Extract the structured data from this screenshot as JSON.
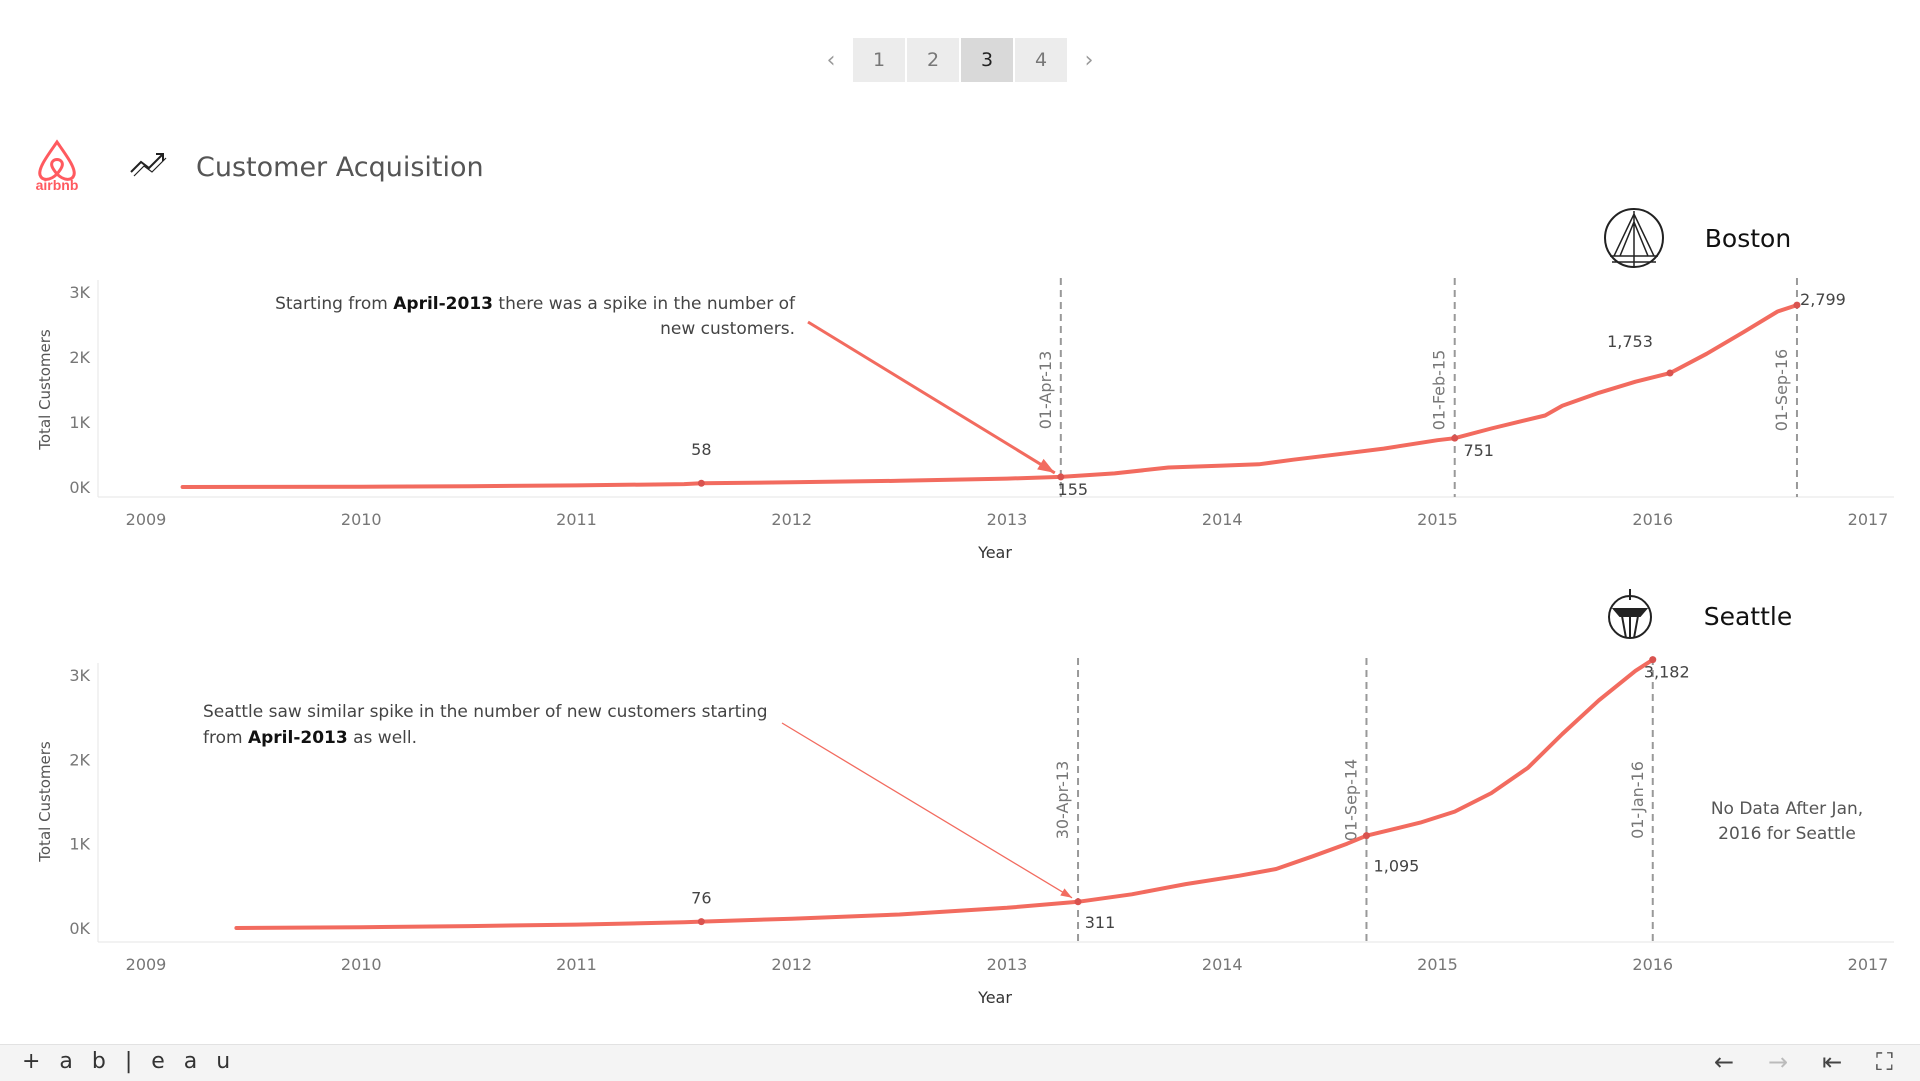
{
  "pager": {
    "prev": "‹",
    "next": "›",
    "pages": [
      "1",
      "2",
      "3",
      "4"
    ],
    "active": 2
  },
  "header": {
    "brand": "airbnb",
    "title": "Customer Acquisition",
    "brand_color": "#FF5A5F"
  },
  "footer": {
    "logo": "+ a b | e a u",
    "icons": [
      "back-arrow-icon",
      "forward-arrow-icon",
      "revert-icon",
      "fullscreen-icon"
    ]
  },
  "chart_data": [
    {
      "type": "line",
      "city": "Boston",
      "xlabel": "Year",
      "ylabel": "Total Customers",
      "xlim": [
        2009,
        2017
      ],
      "ylim": [
        0,
        3000
      ],
      "x_ticks": [
        "2009",
        "2010",
        "2011",
        "2012",
        "2013",
        "2014",
        "2015",
        "2016",
        "2017"
      ],
      "y_ticks": [
        "3K",
        "2K",
        "1K",
        "0K"
      ],
      "line_color": "#F26B5F",
      "series": [
        {
          "x": [
            2009.17,
            2009.5,
            2010.0,
            2010.5,
            2011.0,
            2011.5,
            2011.58,
            2012.0,
            2012.5,
            2013.0,
            2013.25,
            2013.5,
            2013.75,
            2014.0,
            2014.17,
            2014.33,
            2014.58,
            2014.75,
            2015.0,
            2015.08,
            2015.25,
            2015.5,
            2015.58,
            2015.75,
            2015.92,
            2016.08,
            2016.25,
            2016.42,
            2016.58,
            2016.67
          ],
          "y": [
            0,
            2,
            5,
            12,
            25,
            45,
            58,
            72,
            95,
            130,
            155,
            210,
            300,
            330,
            350,
            420,
            520,
            590,
            720,
            751,
            900,
            1100,
            1250,
            1450,
            1620,
            1753,
            2050,
            2380,
            2700,
            2799
          ]
        }
      ],
      "points": [
        {
          "x": 2011.58,
          "y": 58,
          "label": "58"
        },
        {
          "x": 2013.25,
          "y": 155,
          "label": "155"
        },
        {
          "x": 2015.08,
          "y": 751,
          "label": "751"
        },
        {
          "x": 2016.08,
          "y": 1753,
          "label": "1,753"
        },
        {
          "x": 2016.67,
          "y": 2799,
          "label": "2,799"
        }
      ],
      "reference_lines": [
        {
          "x": 2013.25,
          "label": "01-Apr-13"
        },
        {
          "x": 2015.08,
          "label": "01-Feb-15"
        },
        {
          "x": 2016.67,
          "label": "01-Sep-16"
        }
      ],
      "annotation": {
        "parts": [
          {
            "text": "Starting from ",
            "bold": false
          },
          {
            "text": "April-2013",
            "bold": true
          },
          {
            "text": "  there was a spike in the number of",
            "bold": false
          }
        ],
        "line2": "new customers.",
        "target_x": 2013.25,
        "target_y": 155
      }
    },
    {
      "type": "line",
      "city": "Seattle",
      "xlabel": "Year",
      "ylabel": "Total Customers",
      "xlim": [
        2009,
        2017
      ],
      "ylim": [
        0,
        3000
      ],
      "x_ticks": [
        "2009",
        "2010",
        "2011",
        "2012",
        "2013",
        "2014",
        "2015",
        "2016",
        "2017"
      ],
      "y_ticks": [
        "3K",
        "2K",
        "1K",
        "0K"
      ],
      "line_color": "#F26B5F",
      "series": [
        {
          "x": [
            2009.42,
            2010.0,
            2010.5,
            2011.0,
            2011.5,
            2011.58,
            2012.0,
            2012.5,
            2013.0,
            2013.33,
            2013.58,
            2013.83,
            2014.08,
            2014.25,
            2014.42,
            2014.58,
            2014.67,
            2014.92,
            2015.08,
            2015.25,
            2015.42,
            2015.58,
            2015.75,
            2015.92,
            2016.0
          ],
          "y": [
            0,
            10,
            22,
            40,
            68,
            76,
            110,
            160,
            240,
            311,
            400,
            520,
            620,
            700,
            850,
            1000,
            1095,
            1250,
            1380,
            1600,
            1900,
            2300,
            2700,
            3050,
            3182
          ]
        }
      ],
      "points": [
        {
          "x": 2011.58,
          "y": 76,
          "label": "76"
        },
        {
          "x": 2013.33,
          "y": 311,
          "label": "311"
        },
        {
          "x": 2014.67,
          "y": 1095,
          "label": "1,095"
        },
        {
          "x": 2016.0,
          "y": 3182,
          "label": "3,182"
        }
      ],
      "reference_lines": [
        {
          "x": 2013.33,
          "label": "30-Apr-13"
        },
        {
          "x": 2014.67,
          "label": "01-Sep-14"
        },
        {
          "x": 2016.0,
          "label": "01-Jan-16"
        }
      ],
      "annotation": {
        "parts": [
          {
            "text": "Seattle saw similar spike in the number of new customers starting",
            "bold": false
          }
        ],
        "line2_parts": [
          {
            "text": "from ",
            "bold": false
          },
          {
            "text": "April-2013",
            "bold": true
          },
          {
            "text": "  as well.",
            "bold": false
          }
        ],
        "target_x": 2013.33,
        "target_y": 311
      },
      "note": [
        "No Data After Jan,",
        "2016 for Seattle"
      ]
    }
  ]
}
